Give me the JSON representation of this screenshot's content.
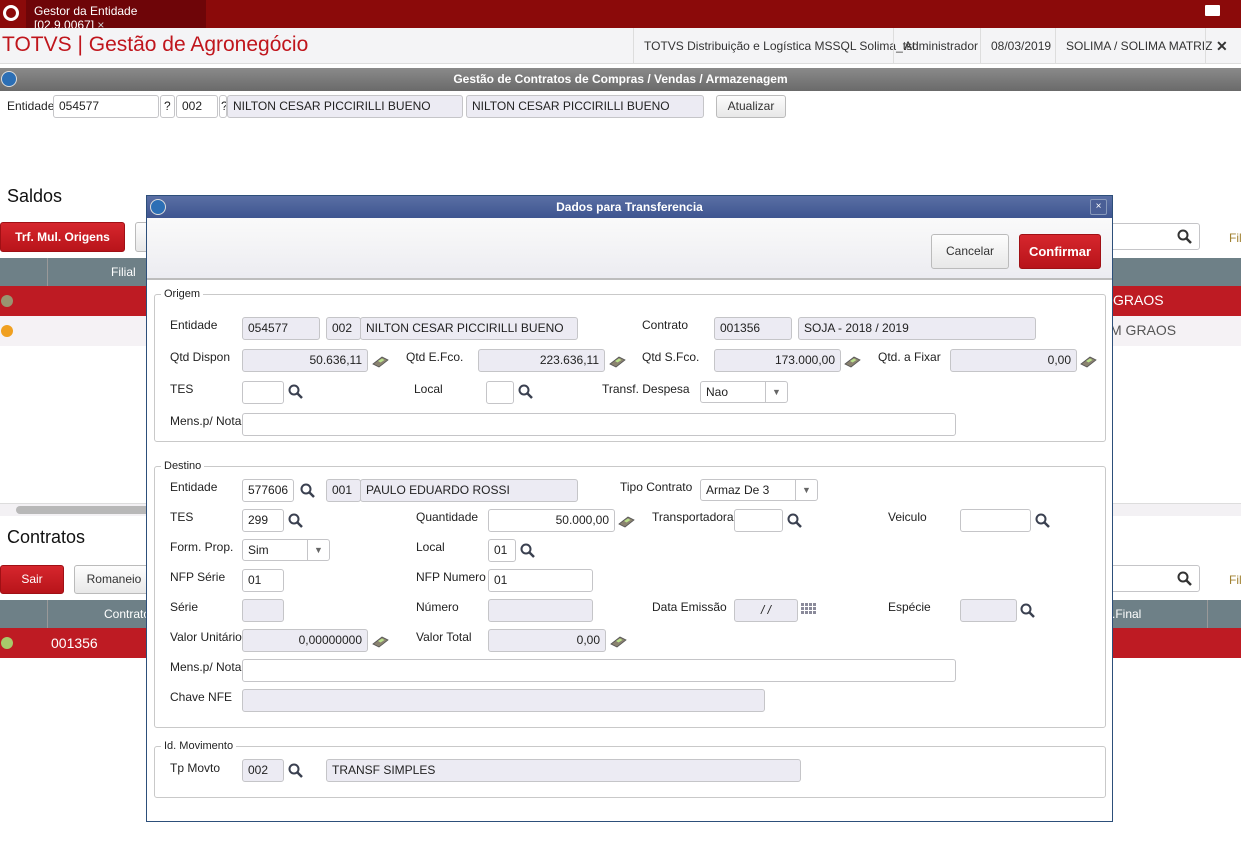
{
  "app": {
    "tab_title": "Gestor da Entidade [02.9.0067]",
    "brand": "TOTVS | Gestão de Agronegócio",
    "environment": "TOTVS Distribuição e Logística MSSQL Solima_tst",
    "user": "Administrador",
    "date": "08/03/2019",
    "branch": "SOLIMA / SOLIMA MATRIZ",
    "exit_label": "E"
  },
  "main": {
    "title": "Gestão de Contratos de Compras / Vendas / Armazenagem",
    "entidade_label": "Entidade",
    "entidade_code": "054577",
    "loja": "002",
    "q": "?",
    "name1": "NILTON CESAR PICCIRILLI BUENO",
    "name2": "NILTON CESAR PICCIRILLI BUENO",
    "atualizar": "Atualizar",
    "saldos": {
      "title": "Saldos",
      "button": "Trf. Mul. Origens",
      "col_filial": "Filial",
      "filter": "Filt",
      "rows": [
        {
          "status": "#9a9470",
          "tail": "GRAOS"
        },
        {
          "status": "#f0a020",
          "tail": "M GRAOS"
        }
      ]
    },
    "contratos": {
      "title": "Contratos",
      "sair": "Sair",
      "romaneio": "Romaneio",
      "col_contrato": "Contrato",
      "col_final": ".Final",
      "filter": "Filt",
      "rows": [
        {
          "status": "#a8c96a",
          "contrato": "001356"
        }
      ]
    }
  },
  "dialog": {
    "title": "Dados para Transferencia",
    "cancel": "Cancelar",
    "confirm": "Confirmar",
    "origem": {
      "legend": "Origem",
      "entidade_label": "Entidade",
      "entidade": "054577",
      "loja": "002",
      "nome": "NILTON CESAR PICCIRILLI BUENO",
      "contrato_label": "Contrato",
      "contrato": "001356",
      "contrato_desc": "SOJA  - 2018 / 2019",
      "qtd_dispon_label": "Qtd Dispon",
      "qtd_dispon": "50.636,11",
      "qtd_efco_label": "Qtd E.Fco.",
      "qtd_efco": "223.636,11",
      "qtd_sfco_label": "Qtd S.Fco.",
      "qtd_sfco": "173.000,00",
      "qtd_fixar_label": "Qtd. a Fixar",
      "qtd_fixar": "0,00",
      "tes_label": "TES",
      "tes": "",
      "local_label": "Local",
      "local": "",
      "despesa_label": "Transf. Despesa",
      "despesa": "Nao",
      "mens_label": "Mens.p/ Nota",
      "mens": ""
    },
    "destino": {
      "legend": "Destino",
      "entidade_label": "Entidade",
      "entidade": "577606",
      "loja": "001",
      "nome": "PAULO EDUARDO ROSSI",
      "tipo_label": "Tipo Contrato",
      "tipo": "Armaz De 3",
      "tes_label": "TES",
      "tes": "299",
      "quantidade_label": "Quantidade",
      "quantidade": "50.000,00",
      "transp_label": "Transportadora",
      "transp": "",
      "veiculo_label": "Veiculo",
      "veiculo": "",
      "form_label": "Form. Prop.",
      "form": "Sim",
      "local_label": "Local",
      "local": "01",
      "nfp_serie_label": "NFP Série",
      "nfp_serie": "01",
      "nfp_numero_label": "NFP Numero",
      "nfp_numero": "01",
      "serie_label": "Série",
      "serie": "",
      "numero_label": "Número",
      "numero": "",
      "data_label": "Data Emissão",
      "data": " /  /",
      "especie_label": "Espécie",
      "especie": "",
      "vunit_label": "Valor Unitário",
      "vunit": "0,00000000",
      "vtotal_label": "Valor Total",
      "vtotal": "0,00",
      "mens_label": "Mens.p/ Nota",
      "mens": "",
      "chave_label": "Chave NFE",
      "chave": ""
    },
    "movimento": {
      "legend": "Id. Movimento",
      "tp_label": "Tp Movto",
      "tp": "002",
      "tp_desc": "TRANSF SIMPLES"
    }
  }
}
